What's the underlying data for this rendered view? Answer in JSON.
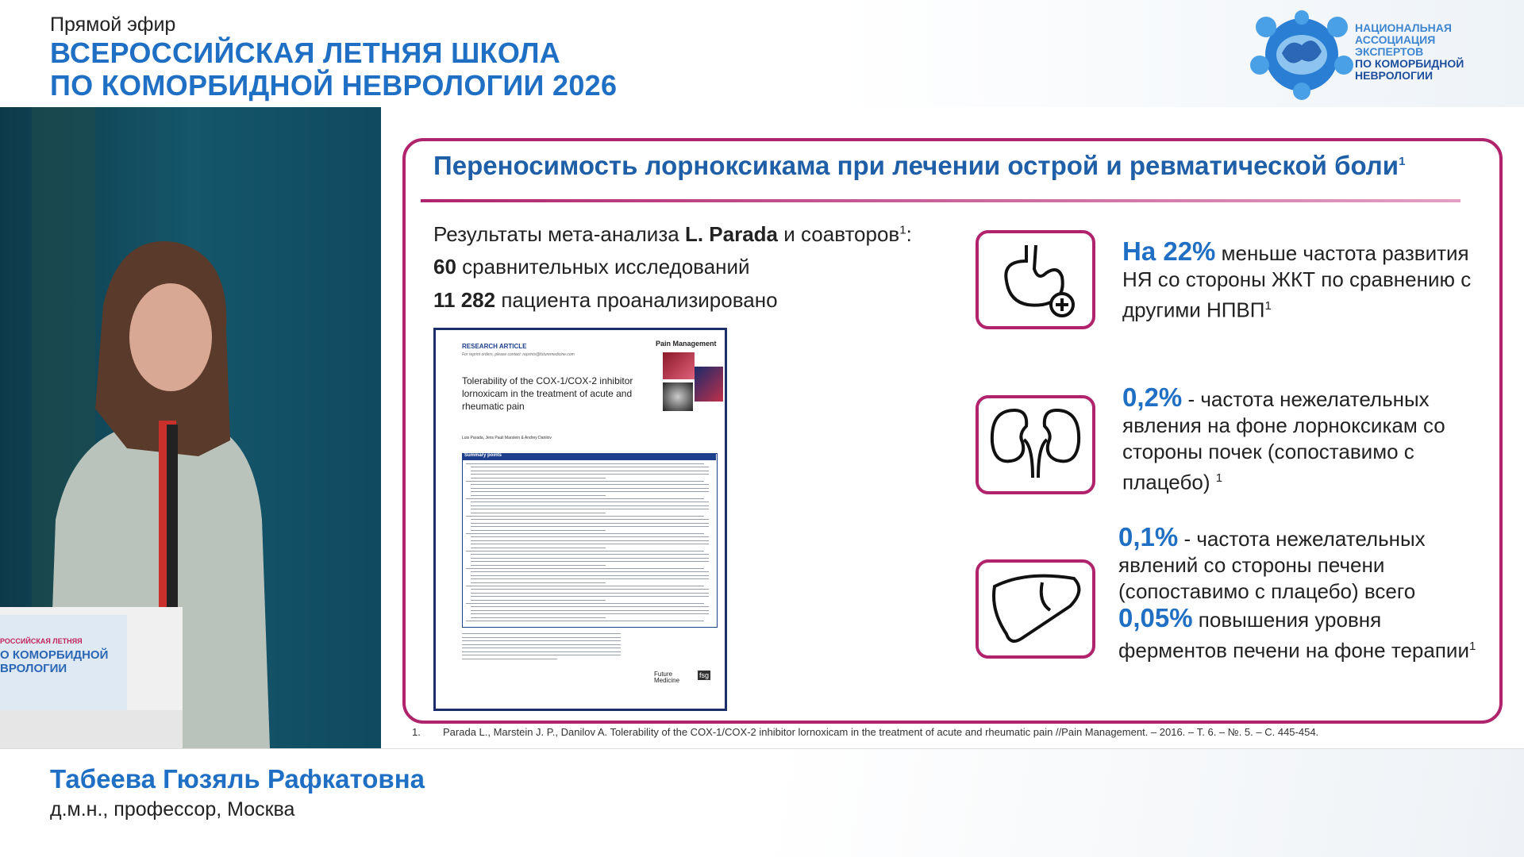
{
  "header": {
    "live": "Прямой эфир",
    "title_lines": [
      "ВСЕРОССИЙСКАЯ ЛЕТНЯЯ ШКОЛА",
      "ПО КОМОРБИДНОЙ НЕВРОЛОГИИ 2026"
    ]
  },
  "logo": {
    "lines": [
      "НАЦИОНАЛЬНАЯ",
      "АССОЦИАЦИЯ",
      "ЭКСПЕРТОВ",
      "ПО КОМОРБИДНОЙ",
      "НЕВРОЛОГИИ"
    ]
  },
  "podium": {
    "lines": [
      "РОССИЙСКАЯ ЛЕТНЯЯ",
      "О КОМОРБИДНОЙ",
      "ВРОЛОГИИ"
    ]
  },
  "slide": {
    "title": "Переносимость лорноксикама при лечении острой и ревматической боли",
    "title_ref": "1",
    "intro": {
      "line1": {
        "text": "Результаты мета-анализа ",
        "bold": "L. Parada",
        "tail": " и соавторов",
        "ref": "1",
        "end": ":"
      },
      "line2": {
        "bold": "60",
        "text": " сравнительных исследований"
      },
      "line3": {
        "bold": "11 282",
        "text": " пациента проанализировано"
      }
    },
    "article": {
      "kind": "RESEARCH ARTICLE",
      "reprint": "For reprint orders, please contact: reprints@futuremedicine.com",
      "journal": "Pain Management",
      "title": "Tolerability of the COX-1/COX-2 inhibitor lornoxicam in the treatment of acute and rheumatic pain",
      "authors": "Luis Parada, Jens Pauli Marstein & Andrey Danilov",
      "summary": "Summary points",
      "publisher": "Future Medicine",
      "badge": "fsg"
    },
    "items": [
      {
        "highlight": "На 22%",
        "text": " меньше частота развития НЯ со стороны ЖКТ по сравнению с другими НПВП",
        "ref": "1"
      },
      {
        "highlight": "0,2%",
        "text": " - частота нежелательных явления на фоне лорноксикам со стороны почек (сопоставимо с плацебо) ",
        "ref": "1"
      },
      {
        "highlight": "0,1%",
        "text": " - частота нежелательных явлений со стороны печени (сопоставимо с плацебо) всего ",
        "highlight2": "0,05%",
        "text2": " повышения уровня ферментов печени на фоне терапии",
        "ref": "1"
      }
    ],
    "footnote": {
      "number": "1.",
      "text": "Parada L., Marstein J. P., Danilov A. Tolerability of the COX-1/COX-2 inhibitor lornoxicam in the treatment of acute and rheumatic pain //Pain Management. – 2016. – Т. 6. – №. 5. – С. 445-454."
    }
  },
  "speaker": {
    "name": "Табеева Гюзяль Рафкатовна",
    "role": "д.м.н., профессор, Москва"
  }
}
